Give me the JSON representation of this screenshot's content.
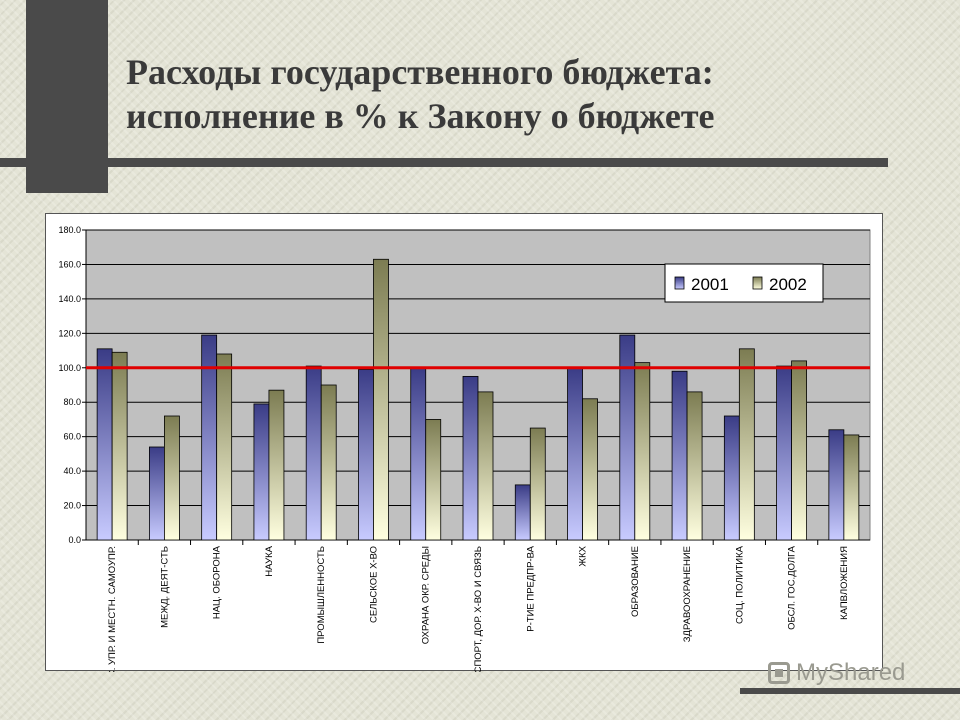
{
  "slide": {
    "title_line1": "Расходы государственного бюджета:",
    "title_line2": "исполнение в % к Закону о бюджете"
  },
  "watermark": {
    "text": "MyShared",
    "icon": "presentation-icon"
  },
  "colors": {
    "series_2001": "#5b5ea8",
    "series_2002": "#a6a678",
    "reference_line": "#e00000",
    "plot_background": "#c0c0c0"
  },
  "chart_data": {
    "type": "bar",
    "categories": [
      "ГОС. УПР. И МЕСТН. САМОУПР.",
      "МЕЖД. ДЕЯТ-СТЬ",
      "НАЦ. ОБОРОНА",
      "НАУКА",
      "ПРОМЫШЛЕННОСТЬ",
      "СЕЛЬСКОЕ Х-ВО",
      "ОХРАНА ОКР. СРЕДЫ",
      "ТРАНСПОРТ, ДОР. Х-ВО И СВЯЗЬ",
      "Р-ТИЕ ПРЕДПР-ВА",
      "ЖКХ",
      "ОБРАЗОВАНИЕ",
      "ЗДРАВООХРАНЕНИЕ",
      "СОЦ. ПОЛИТИКА",
      "ОБСЛ. ГОС.ДОЛГА",
      "КАПВЛОЖЕНИЯ"
    ],
    "series": [
      {
        "name": "2001",
        "values": [
          111,
          54,
          119,
          79,
          101,
          99,
          100,
          95,
          32,
          100,
          119,
          98,
          72,
          101,
          64
        ]
      },
      {
        "name": "2002",
        "values": [
          109,
          72,
          108,
          87,
          90,
          163,
          70,
          86,
          65,
          82,
          103,
          86,
          111,
          104,
          61
        ]
      }
    ],
    "reference_line": 100,
    "ylim": [
      0,
      180
    ],
    "yticks": [
      "0.0",
      "20.0",
      "40.0",
      "60.0",
      "80.0",
      "100.0",
      "120.0",
      "140.0",
      "160.0",
      "180.0"
    ],
    "grid": true,
    "legend": "top-right",
    "title": "",
    "xlabel": "",
    "ylabel": ""
  }
}
